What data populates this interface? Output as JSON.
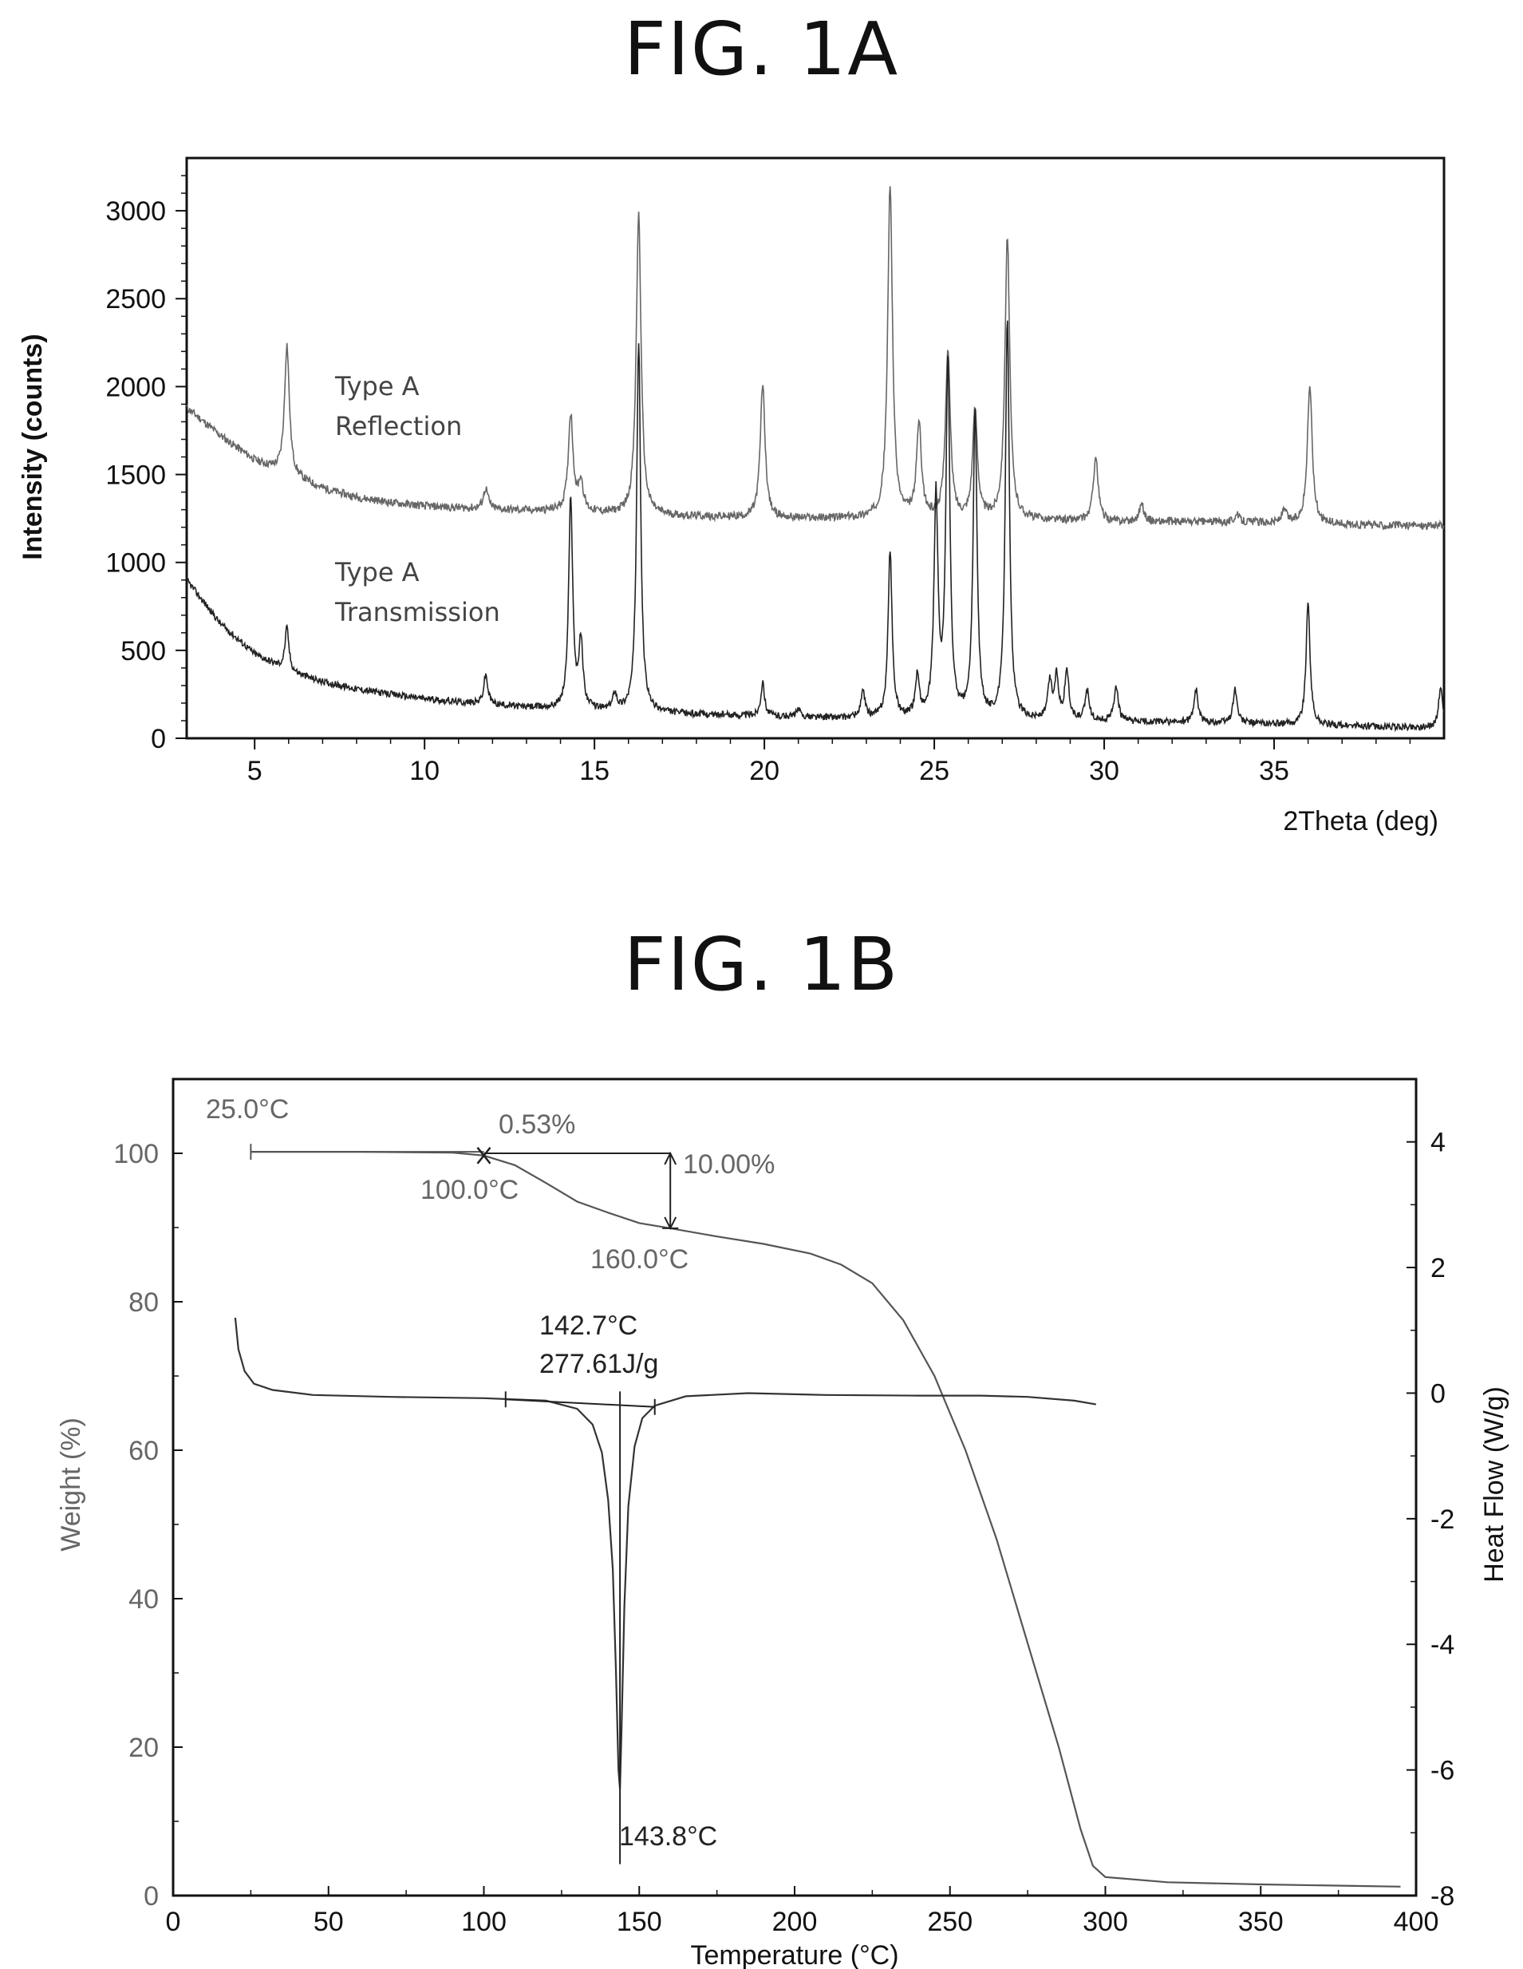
{
  "figures": {
    "a_title": "FIG. 1A",
    "b_title": "FIG. 1B"
  },
  "chart_data": [
    {
      "type": "line",
      "title": "FIG. 1A",
      "xlabel": "2Theta (deg)",
      "ylabel": "Intensity (counts)",
      "xlim": [
        3,
        40
      ],
      "ylim": [
        0,
        3300
      ],
      "xticks": [
        5,
        10,
        15,
        20,
        25,
        30,
        35
      ],
      "yticks": [
        0,
        500,
        1000,
        1500,
        2000,
        2500,
        3000
      ],
      "grid": false,
      "series": [
        {
          "name": "Type A Reflection",
          "label_line1": "Type A",
          "label_line2": "Reflection",
          "color": "#666666",
          "baseline": [
            [
              3,
              1880
            ],
            [
              4,
              1720
            ],
            [
              5,
              1580
            ],
            [
              5.7,
              1520
            ],
            [
              7,
              1420
            ],
            [
              8,
              1370
            ],
            [
              9,
              1340
            ],
            [
              10,
              1320
            ],
            [
              12,
              1300
            ],
            [
              14,
              1290
            ],
            [
              16,
              1270
            ],
            [
              18,
              1260
            ],
            [
              20,
              1250
            ],
            [
              22,
              1250
            ],
            [
              24,
              1250
            ],
            [
              26,
              1240
            ],
            [
              28,
              1240
            ],
            [
              30,
              1230
            ],
            [
              32,
              1230
            ],
            [
              34,
              1230
            ],
            [
              36,
              1220
            ],
            [
              38,
              1210
            ],
            [
              40,
              1210
            ]
          ],
          "peaks": [
            [
              5.95,
              2240
            ],
            [
              11.8,
              1420
            ],
            [
              14.3,
              1840
            ],
            [
              14.6,
              1450
            ],
            [
              16.3,
              2980
            ],
            [
              19.95,
              2010
            ],
            [
              23.7,
              3140
            ],
            [
              24.55,
              1780
            ],
            [
              25.4,
              2200
            ],
            [
              26.2,
              1860
            ],
            [
              27.15,
              2850
            ],
            [
              29.75,
              1600
            ],
            [
              31.1,
              1330
            ],
            [
              33.9,
              1270
            ],
            [
              35.3,
              1290
            ],
            [
              36.05,
              2010
            ]
          ]
        },
        {
          "name": "Type A Transmission",
          "label_line1": "Type A",
          "label_line2": "Transmission",
          "color": "#222222",
          "baseline": [
            [
              3,
              900
            ],
            [
              4,
              650
            ],
            [
              5,
              480
            ],
            [
              6,
              380
            ],
            [
              7,
              320
            ],
            [
              8,
              280
            ],
            [
              9,
              250
            ],
            [
              10,
              225
            ],
            [
              11,
              205
            ],
            [
              12,
              190
            ],
            [
              13,
              175
            ],
            [
              14,
              165
            ],
            [
              16,
              150
            ],
            [
              18,
              135
            ],
            [
              20,
              125
            ],
            [
              22,
              115
            ],
            [
              24,
              110
            ],
            [
              26,
              105
            ],
            [
              28,
              100
            ],
            [
              30,
              95
            ],
            [
              32,
              90
            ],
            [
              34,
              85
            ],
            [
              36,
              75
            ],
            [
              38,
              65
            ],
            [
              40,
              60
            ]
          ],
          "peaks": [
            [
              5.95,
              630
            ],
            [
              11.8,
              360
            ],
            [
              14.3,
              1370
            ],
            [
              14.6,
              540
            ],
            [
              15.6,
              250
            ],
            [
              16.3,
              2260
            ],
            [
              19.95,
              310
            ],
            [
              21.0,
              160
            ],
            [
              22.9,
              260
            ],
            [
              23.7,
              1060
            ],
            [
              24.5,
              340
            ],
            [
              25.05,
              1350
            ],
            [
              25.4,
              2130
            ],
            [
              26.2,
              1840
            ],
            [
              27.15,
              2390
            ],
            [
              28.4,
              310
            ],
            [
              28.6,
              340
            ],
            [
              28.9,
              380
            ],
            [
              29.5,
              270
            ],
            [
              30.35,
              300
            ],
            [
              32.7,
              280
            ],
            [
              33.85,
              280
            ],
            [
              36.0,
              770
            ],
            [
              39.9,
              290
            ]
          ]
        }
      ]
    },
    {
      "type": "line",
      "title": "FIG. 1B",
      "xlabel": "Temperature (°C)",
      "ylabel": "Weight (%)",
      "ylabel_right": "Heat Flow (W/g)",
      "xlim": [
        0,
        400
      ],
      "ylim": [
        0,
        110
      ],
      "ylim_right": [
        -8,
        5
      ],
      "xticks": [
        0,
        50,
        100,
        150,
        200,
        250,
        300,
        350,
        400
      ],
      "yticks": [
        0,
        20,
        40,
        60,
        80,
        100
      ],
      "yticks_right": [
        -8,
        -6,
        -4,
        -2,
        0,
        2,
        4
      ],
      "grid": false,
      "series": [
        {
          "name": "Weight",
          "axis": "left",
          "color": "#555555",
          "points": [
            [
              25,
              100.2
            ],
            [
              60,
              100.2
            ],
            [
              90,
              100.1
            ],
            [
              100,
              99.7
            ],
            [
              110,
              98.4
            ],
            [
              120,
              96.0
            ],
            [
              130,
              93.5
            ],
            [
              140,
              92.0
            ],
            [
              150,
              90.6
            ],
            [
              160,
              89.9
            ],
            [
              175,
              88.8
            ],
            [
              190,
              87.8
            ],
            [
              205,
              86.5
            ],
            [
              215,
              85.0
            ],
            [
              225,
              82.5
            ],
            [
              235,
              77.5
            ],
            [
              245,
              70.0
            ],
            [
              255,
              60.0
            ],
            [
              265,
              48.0
            ],
            [
              275,
              34.0
            ],
            [
              285,
              20.0
            ],
            [
              292,
              9.0
            ],
            [
              296,
              4.0
            ],
            [
              300,
              2.5
            ],
            [
              320,
              1.8
            ],
            [
              350,
              1.5
            ],
            [
              380,
              1.3
            ],
            [
              395,
              1.2
            ]
          ]
        },
        {
          "name": "Heat Flow",
          "axis": "right",
          "color": "#333333",
          "points": [
            [
              20,
              1.2
            ],
            [
              21,
              0.7
            ],
            [
              23,
              0.35
            ],
            [
              26,
              0.15
            ],
            [
              32,
              0.05
            ],
            [
              45,
              -0.03
            ],
            [
              70,
              -0.06
            ],
            [
              100,
              -0.08
            ],
            [
              120,
              -0.12
            ],
            [
              130,
              -0.25
            ],
            [
              135,
              -0.5
            ],
            [
              138,
              -0.95
            ],
            [
              140,
              -1.7
            ],
            [
              141.5,
              -2.8
            ],
            [
              142.5,
              -4.4
            ],
            [
              143.3,
              -6.0
            ],
            [
              143.8,
              -6.3
            ],
            [
              144.3,
              -5.4
            ],
            [
              145.2,
              -3.4
            ],
            [
              146.5,
              -1.8
            ],
            [
              148.5,
              -0.85
            ],
            [
              151,
              -0.4
            ],
            [
              155,
              -0.2
            ],
            [
              165,
              -0.05
            ],
            [
              185,
              0.0
            ],
            [
              210,
              -0.03
            ],
            [
              240,
              -0.04
            ],
            [
              260,
              -0.04
            ],
            [
              275,
              -0.06
            ],
            [
              290,
              -0.12
            ],
            [
              297,
              -0.18
            ]
          ]
        }
      ],
      "annotations": {
        "start_temp": "25.0°C",
        "loss_pct": "0.53%",
        "loss_start": "100.0°C",
        "loss_total": "10.00%",
        "loss_end": "160.0°C",
        "onset_temp": "142.7°C",
        "enthalpy": "277.61J/g",
        "peak_temp": "143.8°C"
      }
    }
  ]
}
